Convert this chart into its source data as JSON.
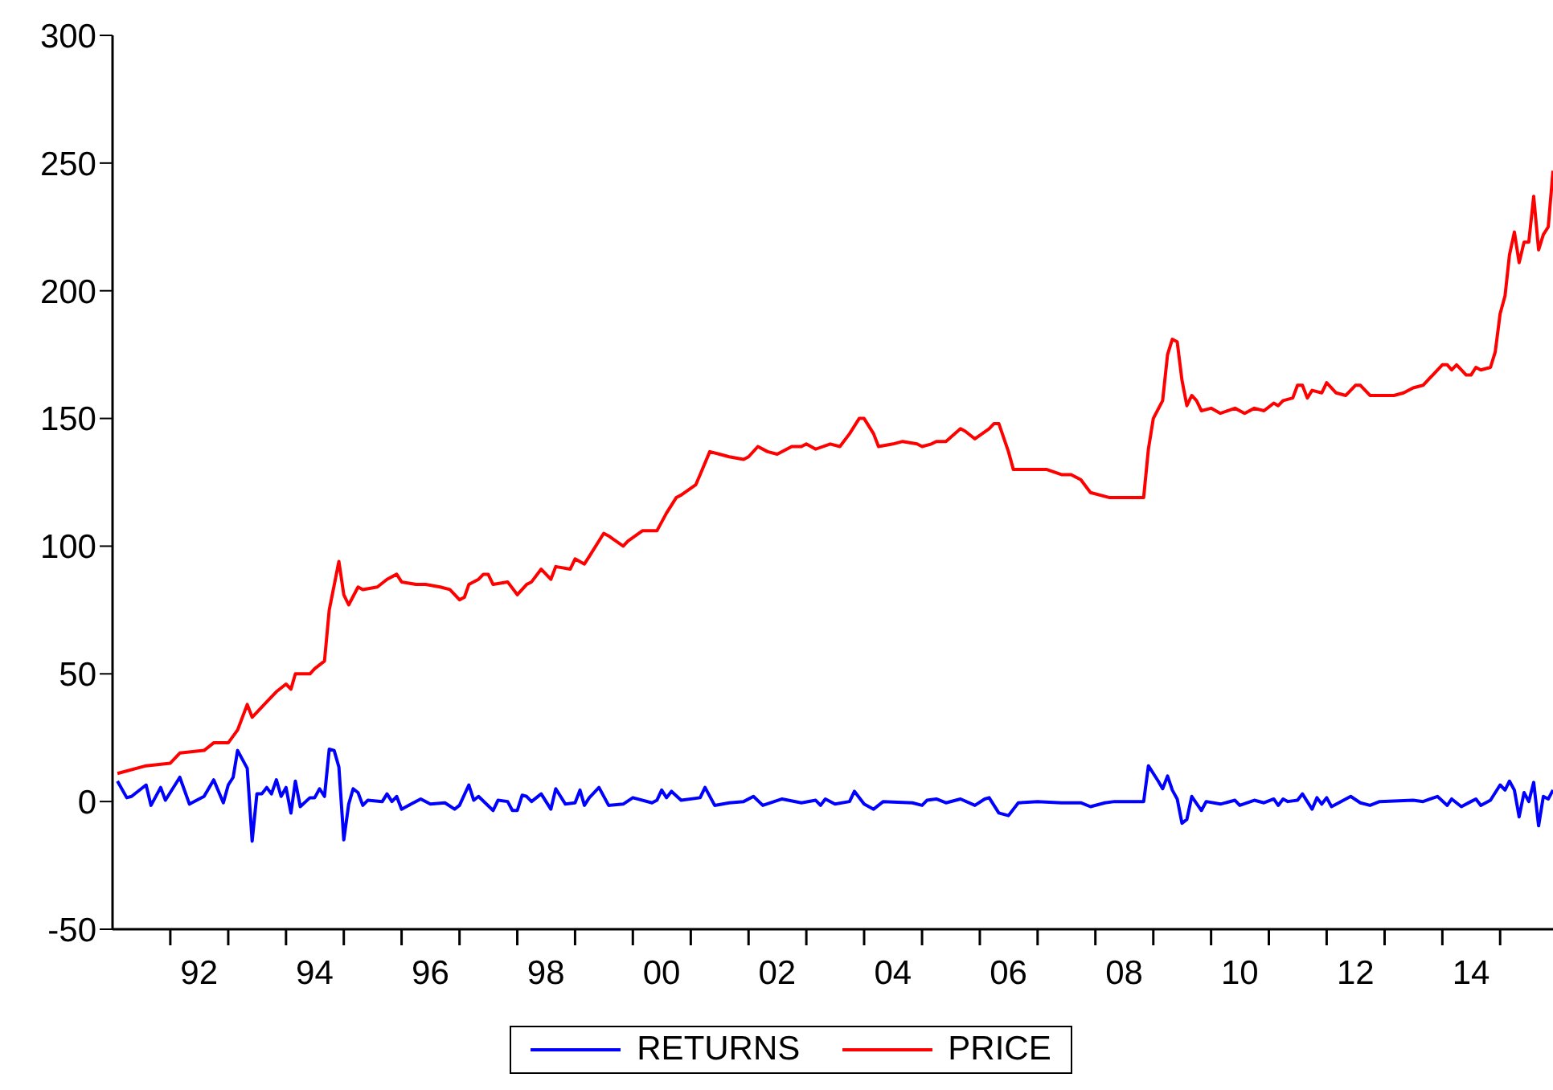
{
  "chart_data": {
    "type": "line",
    "xlim": [
      "1991-01",
      "2015-12"
    ],
    "ylim": [
      -50,
      300
    ],
    "yticks": [
      -50,
      0,
      50,
      100,
      150,
      200,
      250,
      300
    ],
    "xticks": [
      {
        "value": "1992-01",
        "label": null
      },
      {
        "value": "1992-07",
        "label": "92"
      },
      {
        "value": "1993-01",
        "label": null
      },
      {
        "value": "1994-01",
        "label": null
      },
      {
        "value": "1994-07",
        "label": "94"
      },
      {
        "value": "1995-01",
        "label": null
      },
      {
        "value": "1996-01",
        "label": null
      },
      {
        "value": "1996-07",
        "label": "96"
      },
      {
        "value": "1997-01",
        "label": null
      },
      {
        "value": "1998-01",
        "label": null
      },
      {
        "value": "1998-07",
        "label": "98"
      },
      {
        "value": "1999-01",
        "label": null
      },
      {
        "value": "2000-01",
        "label": null
      },
      {
        "value": "2000-07",
        "label": "00"
      },
      {
        "value": "2001-01",
        "label": null
      },
      {
        "value": "2002-01",
        "label": null
      },
      {
        "value": "2002-07",
        "label": "02"
      },
      {
        "value": "2003-01",
        "label": null
      },
      {
        "value": "2004-01",
        "label": null
      },
      {
        "value": "2004-07",
        "label": "04"
      },
      {
        "value": "2005-01",
        "label": null
      },
      {
        "value": "2006-01",
        "label": null
      },
      {
        "value": "2006-07",
        "label": "06"
      },
      {
        "value": "2007-01",
        "label": null
      },
      {
        "value": "2008-01",
        "label": null
      },
      {
        "value": "2008-07",
        "label": "08"
      },
      {
        "value": "2009-01",
        "label": null
      },
      {
        "value": "2010-01",
        "label": null
      },
      {
        "value": "2010-07",
        "label": "10"
      },
      {
        "value": "2011-01",
        "label": null
      },
      {
        "value": "2012-01",
        "label": null
      },
      {
        "value": "2012-07",
        "label": "12"
      },
      {
        "value": "2013-01",
        "label": null
      },
      {
        "value": "2014-01",
        "label": null
      },
      {
        "value": "2014-07",
        "label": "14"
      },
      {
        "value": "2015-01",
        "label": null
      }
    ],
    "grid": false,
    "legend": "bottom",
    "series": [
      {
        "name": "RETURNS",
        "color": "#0000ff",
        "x": [
          "1991-02",
          "1991-04",
          "1991-05",
          "1991-08",
          "1991-09",
          "1991-11",
          "1991-12",
          "1992-03",
          "1992-05",
          "1992-08",
          "1992-10",
          "1992-12",
          "1993-01",
          "1993-02",
          "1993-03",
          "1993-05",
          "1993-06",
          "1993-07",
          "1993-08",
          "1993-09",
          "1993-10",
          "1993-11",
          "1993-12",
          "1994-01",
          "1994-02",
          "1994-03",
          "1994-04",
          "1994-06",
          "1994-07",
          "1994-08",
          "1994-09",
          "1994-10",
          "1994-11",
          "1994-12",
          "1995-01",
          "1995-02",
          "1995-03",
          "1995-04",
          "1995-05",
          "1995-06",
          "1995-09",
          "1995-10",
          "1995-11",
          "1995-12",
          "1996-01",
          "1996-03",
          "1996-05",
          "1996-07",
          "1996-10",
          "1996-12",
          "1997-01",
          "1997-03",
          "1997-04",
          "1997-05",
          "1997-08",
          "1997-09",
          "1997-11",
          "1997-12",
          "1998-01",
          "1998-02",
          "1998-03",
          "1998-04",
          "1998-06",
          "1998-08",
          "1998-09",
          "1998-11",
          "1999-01",
          "1999-02",
          "1999-03",
          "1999-04",
          "1999-06",
          "1999-08",
          "1999-11",
          "2000-01",
          "2000-05",
          "2000-06",
          "2000-07",
          "2000-08",
          "2000-09",
          "2000-11",
          "2001-03",
          "2001-04",
          "2001-06",
          "2001-09",
          "2001-12",
          "2002-02",
          "2002-04",
          "2002-08",
          "2002-12",
          "2003-03",
          "2003-04",
          "2003-05",
          "2003-07",
          "2003-10",
          "2003-11",
          "2004-01",
          "2004-03",
          "2004-05",
          "2004-11",
          "2005-01",
          "2005-02",
          "2005-04",
          "2005-06",
          "2005-09",
          "2005-12",
          "2006-02",
          "2006-03",
          "2006-05",
          "2006-07",
          "2006-09",
          "2007-01",
          "2007-06",
          "2007-10",
          "2007-12",
          "2008-03",
          "2008-05",
          "2008-11",
          "2008-12",
          "2009-02",
          "2009-03",
          "2009-04",
          "2009-05",
          "2009-06",
          "2009-07",
          "2009-08",
          "2009-09",
          "2009-11",
          "2009-12",
          "2010-03",
          "2010-06",
          "2010-07",
          "2010-10",
          "2010-12",
          "2011-02",
          "2011-03",
          "2011-04",
          "2011-05",
          "2011-07",
          "2011-08",
          "2011-10",
          "2011-11",
          "2011-12",
          "2012-01",
          "2012-02",
          "2012-06",
          "2012-08",
          "2012-10",
          "2012-12",
          "2013-07",
          "2013-09",
          "2013-12",
          "2014-02",
          "2014-03",
          "2014-05",
          "2014-07",
          "2014-08",
          "2014-09",
          "2014-11",
          "2015-01",
          "2015-02",
          "2015-03",
          "2015-04",
          "2015-05",
          "2015-06",
          "2015-07",
          "2015-08",
          "2015-09",
          "2015-10",
          "2015-11",
          "2015-12"
        ],
        "values": [
          8,
          1.5,
          2,
          6.5,
          -1.5,
          5.5,
          0.5,
          9.5,
          -1,
          2,
          8.5,
          -0.5,
          6.5,
          9.5,
          20,
          13,
          -15.5,
          3,
          3,
          5.5,
          3,
          8.5,
          2,
          5.5,
          -4.5,
          8,
          -2,
          1.5,
          1.5,
          5,
          2,
          20.5,
          20,
          13.5,
          -15,
          -1,
          5,
          3.5,
          -1.5,
          0.5,
          0,
          3,
          0,
          2,
          -3,
          -1,
          1,
          -1,
          -0.5,
          -3,
          -1.5,
          6.5,
          0.5,
          2,
          -3.5,
          0.5,
          0,
          -3.5,
          -3.5,
          2.5,
          2,
          0,
          3,
          -3,
          5,
          -1,
          -0.5,
          4.5,
          -1.5,
          1.5,
          5.5,
          -1.5,
          -1,
          1.5,
          -0.5,
          0.5,
          4.5,
          1.5,
          4,
          0.5,
          1.5,
          5.5,
          -1.5,
          -0.5,
          0,
          2,
          -1.5,
          1,
          -0.5,
          0.5,
          -1.5,
          1,
          -1,
          0,
          4,
          -1,
          -3,
          0,
          -0.5,
          -1.5,
          0.5,
          1,
          -0.5,
          1,
          -1.5,
          1,
          1.5,
          -4.5,
          -5.5,
          -0.5,
          0,
          -0.5,
          -0.5,
          -2,
          -0.5,
          0,
          0,
          14,
          8,
          5,
          10,
          4.5,
          1,
          -8.5,
          -7,
          2,
          -3.5,
          0,
          -1,
          0.5,
          -1.5,
          0.5,
          -0.5,
          1,
          -1.5,
          1,
          0,
          0.5,
          3,
          -3,
          1.5,
          -1,
          1.5,
          -2,
          2,
          -0.5,
          -1.5,
          0,
          0.5,
          0,
          2,
          -1.5,
          1,
          -2,
          0,
          1,
          -1.5,
          0.5,
          6.5,
          4.5,
          8,
          4.5,
          -6,
          3.5,
          0,
          7.5,
          -9.5,
          2,
          1,
          4.5
        ]
      },
      {
        "name": "PRICE",
        "color": "#ff0000",
        "x": [
          "1991-02",
          "1991-08",
          "1992-01",
          "1992-03",
          "1992-08",
          "1992-10",
          "1993-01",
          "1993-03",
          "1993-05",
          "1993-06",
          "1993-09",
          "1993-11",
          "1994-01",
          "1994-02",
          "1994-03",
          "1994-06",
          "1994-07",
          "1994-09",
          "1994-10",
          "1994-12",
          "1995-01",
          "1995-02",
          "1995-04",
          "1995-05",
          "1995-08",
          "1995-10",
          "1995-12",
          "1996-01",
          "1996-04",
          "1996-06",
          "1996-09",
          "1996-11",
          "1997-01",
          "1997-02",
          "1997-03",
          "1997-05",
          "1997-06",
          "1997-07",
          "1997-08",
          "1997-11",
          "1998-01",
          "1998-03",
          "1998-04",
          "1998-06",
          "1998-08",
          "1998-09",
          "1998-12",
          "1999-01",
          "1999-03",
          "1999-04",
          "1999-07",
          "1999-08",
          "1999-11",
          "1999-12",
          "2000-03",
          "2000-06",
          "2000-08",
          "2000-10",
          "2000-11",
          "2001-02",
          "2001-03",
          "2001-05",
          "2001-07",
          "2001-09",
          "2001-12",
          "2002-01",
          "2002-03",
          "2002-05",
          "2002-07",
          "2002-10",
          "2002-12",
          "2003-01",
          "2003-03",
          "2003-06",
          "2003-08",
          "2003-10",
          "2003-12",
          "2004-01",
          "2004-03",
          "2004-04",
          "2004-07",
          "2004-09",
          "2004-12",
          "2005-01",
          "2005-03",
          "2005-04",
          "2005-06",
          "2005-09",
          "2005-10",
          "2005-12",
          "2006-03",
          "2006-04",
          "2006-05",
          "2006-07",
          "2006-08",
          "2006-10",
          "2007-01",
          "2007-03",
          "2007-06",
          "2007-08",
          "2007-10",
          "2007-12",
          "2008-04",
          "2008-11",
          "2008-12",
          "2009-01",
          "2009-03",
          "2009-04",
          "2009-05",
          "2009-06",
          "2009-07",
          "2009-08",
          "2009-09",
          "2009-10",
          "2009-11",
          "2010-01",
          "2010-03",
          "2010-06",
          "2010-08",
          "2010-10",
          "2010-12",
          "2011-02",
          "2011-03",
          "2011-04",
          "2011-06",
          "2011-07",
          "2011-08",
          "2011-09",
          "2011-10",
          "2011-12",
          "2012-01",
          "2012-03",
          "2012-05",
          "2012-07",
          "2012-08",
          "2012-10",
          "2013-03",
          "2013-05",
          "2013-07",
          "2013-09",
          "2013-11",
          "2014-01",
          "2014-02",
          "2014-03",
          "2014-04",
          "2014-06",
          "2014-07",
          "2014-08",
          "2014-09",
          "2014-11",
          "2014-12",
          "2015-01",
          "2015-02",
          "2015-03",
          "2015-04",
          "2015-05",
          "2015-06",
          "2015-07",
          "2015-08",
          "2015-09",
          "2015-10",
          "2015-11",
          "2015-12"
        ],
        "values": [
          11,
          14,
          15,
          19,
          20,
          23,
          23,
          28,
          38,
          33,
          39,
          43,
          46,
          44,
          50,
          50,
          52,
          55,
          75,
          94,
          81,
          77,
          84,
          83,
          84,
          87,
          89,
          86,
          85,
          85,
          84,
          83,
          79,
          80,
          85,
          87,
          89,
          89,
          85,
          86,
          81,
          85,
          86,
          91,
          87,
          92,
          91,
          95,
          93,
          96,
          105,
          104,
          100,
          102,
          106,
          106,
          113,
          119,
          120,
          124,
          128,
          137,
          136,
          135,
          134,
          135,
          139,
          137,
          136,
          139,
          139,
          140,
          138,
          140,
          139,
          144,
          150,
          150,
          144,
          139,
          140,
          141,
          140,
          139,
          140,
          141,
          141,
          146,
          145,
          142,
          146,
          148,
          148,
          137,
          130,
          130,
          130,
          130,
          128,
          128,
          126,
          121,
          119,
          119,
          138,
          150,
          157,
          175,
          181,
          180,
          165,
          155,
          159,
          157,
          153,
          154,
          152,
          154,
          152,
          154,
          153,
          156,
          155,
          157,
          158,
          163,
          163,
          158,
          161,
          160,
          164,
          160,
          159,
          163,
          163,
          159,
          159,
          160,
          162,
          163,
          167,
          171,
          171,
          169,
          171,
          167,
          167,
          170,
          169,
          170,
          176,
          191,
          198,
          214,
          223,
          211,
          219,
          219,
          237,
          216,
          222,
          225,
          247
        ]
      }
    ]
  }
}
